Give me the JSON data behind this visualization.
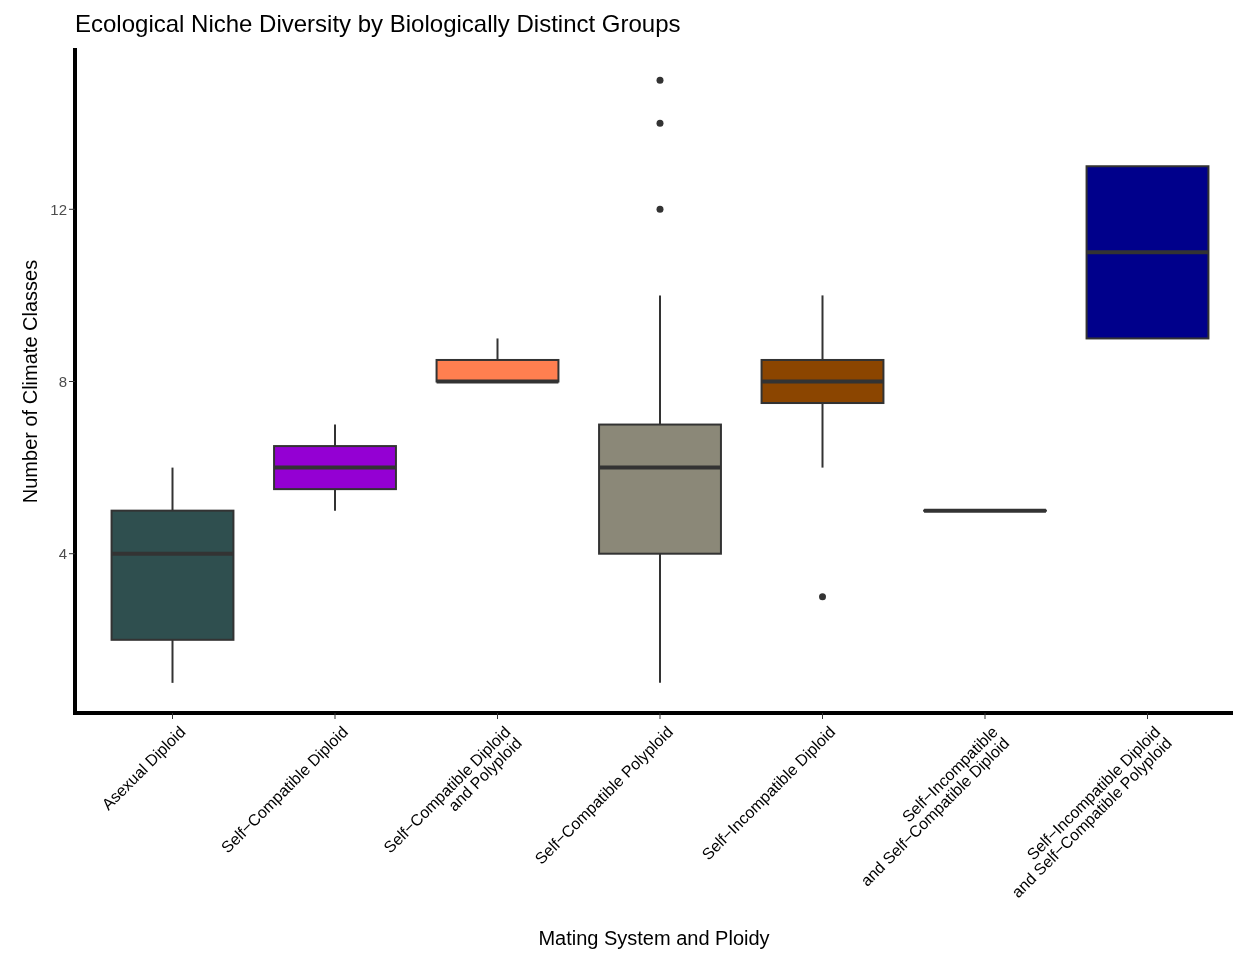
{
  "chart_data": {
    "type": "box",
    "title": "Ecological Niche Diversity by Biologically Distinct Groups",
    "xlabel": "Mating System and Ploidy",
    "ylabel": "Number of Climate Classes",
    "categories": [
      "Asexual Diploid",
      "Self−Compatible Diploid",
      "Self−Compatible Diploid\nand Polyploid",
      "Self−Compatible Polyploid",
      "Self−Incompatible Diploid",
      "Self−Incompatible\nand Self−Compatible Diploid",
      "Self−Incompatible Diploid\nand Self−Compatible Polyploid"
    ],
    "colors": [
      "#2f4f4f",
      "#9400d3",
      "#ff7f50",
      "#8b8878",
      "#8b4500",
      "#333333",
      "#00008b"
    ],
    "boxes": [
      {
        "low": 1,
        "q1": 2,
        "median": 4,
        "q3": 5,
        "high": 6
      },
      {
        "low": 5,
        "q1": 5.5,
        "median": 6,
        "q3": 6.5,
        "high": 7
      },
      {
        "low": 8,
        "q1": 8,
        "median": 8,
        "q3": 8.5,
        "high": 9
      },
      {
        "low": 1,
        "q1": 4,
        "median": 6,
        "q3": 7,
        "high": 10,
        "outliers": [
          12,
          14,
          15
        ]
      },
      {
        "low": 6,
        "q1": 7.5,
        "median": 8,
        "q3": 8.5,
        "high": 10,
        "outliers": [
          3
        ]
      },
      {
        "low": 5,
        "q1": 5,
        "median": 5,
        "q3": 5,
        "high": 5
      },
      {
        "low": 9,
        "q1": 9,
        "median": 11,
        "q3": 13,
        "high": 13
      }
    ],
    "ylim": [
      0.3,
      15.7
    ],
    "yticks": [
      4,
      8,
      12
    ],
    "grid": false
  }
}
